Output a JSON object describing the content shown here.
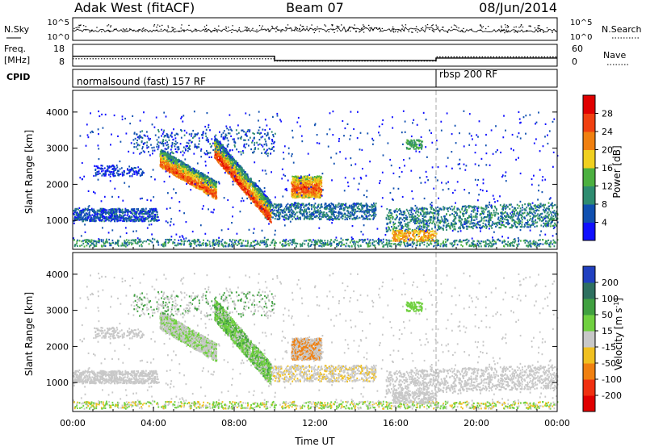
{
  "header": {
    "station": "Adak West (fitACF)",
    "beam": "Beam 07",
    "date": "08/Jun/2014"
  },
  "noise_panel": {
    "left_label": "N.Sky",
    "right_label": "N.Search",
    "left_ticks": [
      "10^5",
      "10^0"
    ],
    "right_ticks": [
      "10^5",
      "10^0"
    ]
  },
  "freq_panel": {
    "left_label_1": "Freq.",
    "left_label_2": "[MHz]",
    "right_label": "Nave",
    "left_ticks": [
      "18",
      "8"
    ],
    "right_ticks": [
      "60",
      "0"
    ],
    "freq_steps": [
      {
        "start_h": 0,
        "end_h": 10,
        "mhz": 13.5
      },
      {
        "start_h": 10,
        "end_h": 18,
        "mhz": 10.4
      },
      {
        "start_h": 18,
        "end_h": 24,
        "mhz": 12.2
      }
    ],
    "nave_steps": [
      {
        "start_h": 0,
        "end_h": 10,
        "value": 22
      },
      {
        "start_h": 10,
        "end_h": 18,
        "value": 12
      },
      {
        "start_h": 18,
        "end_h": 24,
        "value": 30
      }
    ]
  },
  "cpid_panel": {
    "label": "CPID",
    "programs": [
      {
        "name": "normalsound (fast) 157 RF",
        "start_h": 0
      },
      {
        "name": "rbsp 200 RF",
        "start_h": 18
      }
    ]
  },
  "chart_data": [
    {
      "type": "heatmap",
      "title": "Power",
      "ylabel": "Slant Range [km]",
      "xlabel": "",
      "xlim": [
        0,
        24
      ],
      "ylim": [
        200,
        4600
      ],
      "yticks": [
        "1000",
        "2000",
        "3000",
        "4000"
      ],
      "colorbar": {
        "label": "Power [dB]",
        "ticks": [
          "4",
          "8",
          "12",
          "16",
          "20",
          "24",
          "28"
        ],
        "range": [
          0,
          32
        ],
        "colors": [
          "#1010ff",
          "#1050b0",
          "#2e8c70",
          "#4cb040",
          "#f0d020",
          "#f08010",
          "#f04010",
          "#e00000"
        ]
      },
      "features": [
        {
          "name": "dense-echo-arc",
          "x_range_h": [
            4.3,
            7.0
          ],
          "range_km": [
            1600,
            2700
          ]
        },
        {
          "name": "dense-echo-arc",
          "x_range_h": [
            7.0,
            9.8
          ],
          "range_km": [
            1200,
            3100
          ]
        },
        {
          "name": "dense-echo-band",
          "x_range_h": [
            10.8,
            12.3
          ],
          "range_km": [
            1600,
            2200
          ]
        },
        {
          "name": "near-range-band",
          "x_range_h": [
            0.0,
            24.0
          ],
          "range_km": [
            300,
            1200
          ]
        }
      ]
    },
    {
      "type": "heatmap",
      "title": "Velocity",
      "ylabel": "Slant Range [km]",
      "xlabel": "Time UT",
      "xlim": [
        0,
        24
      ],
      "ylim": [
        200,
        4600
      ],
      "xticks": [
        "00:00",
        "04:00",
        "08:00",
        "12:00",
        "16:00",
        "20:00",
        "00:00"
      ],
      "yticks": [
        "1000",
        "2000",
        "3000",
        "4000"
      ],
      "colorbar": {
        "label": "Velocity [m s^-1]",
        "ticks": [
          "200",
          "100",
          "50",
          "15",
          "-15",
          "-50",
          "-100",
          "-200"
        ],
        "colors": [
          "#2040c0",
          "#2e7060",
          "#40a040",
          "#70d040",
          "#c8c8c8",
          "#f0c020",
          "#f08010",
          "#f03010",
          "#e00000"
        ]
      }
    }
  ]
}
